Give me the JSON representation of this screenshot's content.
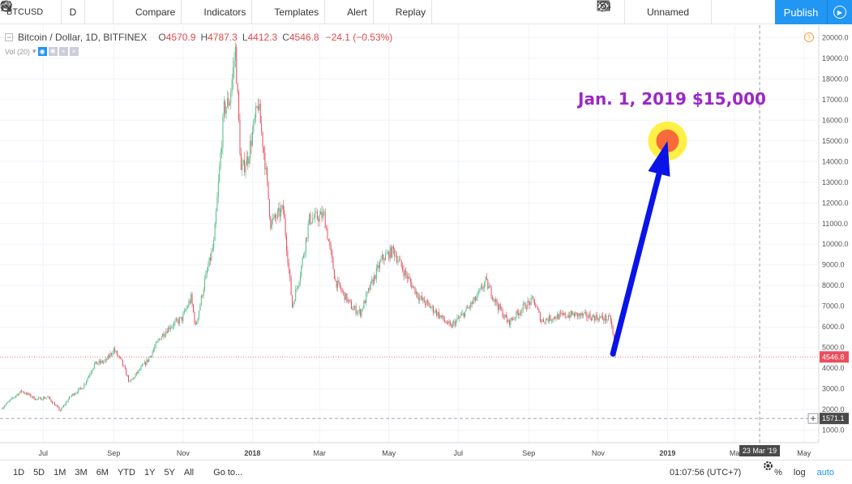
{
  "toolbar": {
    "symbol": "BTCUSD",
    "interval": "D",
    "compare_label": "Compare",
    "indicators_label": "Indicators",
    "templates_label": "Templates",
    "alert_label": "Alert",
    "replay_label": "Replay",
    "layout_name": "Unnamed",
    "publish_label": "Publish"
  },
  "legend": {
    "title": "Bitcoin / Dollar, 1D, BITFINEX",
    "open_key": "O",
    "open": "4570.9",
    "high_key": "H",
    "high": "4787.3",
    "low_key": "L",
    "low": "4412.3",
    "close_key": "C",
    "close": "4546.8",
    "change": "−24.1 (−0.53%)",
    "volume": "Vol (20)"
  },
  "annotation": {
    "text": "Jan. 1, 2019 $15,000",
    "color": "#9b27c7",
    "target": {
      "x": "2019-01-01",
      "y": 15000
    },
    "arrow_start": {
      "x": "2018-11-14",
      "y": 4700
    },
    "arrow_color": "#0a14e8"
  },
  "chart_data": {
    "type": "candlestick",
    "title": "Bitcoin / Dollar, 1D, BITFINEX",
    "y_ticks": [
      "1000.0",
      "2000.0",
      "3000.0",
      "4000.0",
      "5000.0",
      "6000.0",
      "7000.0",
      "8000.0",
      "9000.0",
      "10000.0",
      "11000.0",
      "12000.0",
      "13000.0",
      "14000.0",
      "15000.0",
      "16000.0",
      "17000.0",
      "18000.0",
      "19000.0",
      "20000.0"
    ],
    "x_ticks": [
      "Jul",
      "Sep",
      "Nov",
      "2018",
      "Mar",
      "May",
      "Jul",
      "Sep",
      "Nov",
      "2019",
      "Ma",
      "May"
    ],
    "x_tick_dates": [
      "2017-07-01",
      "2017-09-01",
      "2017-11-01",
      "2018-01-01",
      "2018-03-01",
      "2018-05-01",
      "2018-07-01",
      "2018-09-01",
      "2018-11-01",
      "2019-01-01",
      "2019-03-01",
      "2019-05-01"
    ],
    "ylim": [
      400,
      20600
    ],
    "xlim": [
      "2017-05-24",
      "2019-05-14"
    ],
    "last_price": "4546.8",
    "crosshair_price": "1571.1",
    "crosshair_date": "23 Mar '19",
    "colors": {
      "up": "#53b987",
      "down": "#eb4d5c"
    },
    "series": [
      {
        "date": "2017-05-25",
        "close": 2050
      },
      {
        "date": "2017-06-05",
        "close": 2600
      },
      {
        "date": "2017-06-12",
        "close": 2900
      },
      {
        "date": "2017-06-25",
        "close": 2500
      },
      {
        "date": "2017-07-05",
        "close": 2600
      },
      {
        "date": "2017-07-16",
        "close": 1950
      },
      {
        "date": "2017-07-25",
        "close": 2650
      },
      {
        "date": "2017-08-05",
        "close": 3100
      },
      {
        "date": "2017-08-15",
        "close": 4200
      },
      {
        "date": "2017-08-25",
        "close": 4350
      },
      {
        "date": "2017-09-01",
        "close": 4900
      },
      {
        "date": "2017-09-08",
        "close": 4300
      },
      {
        "date": "2017-09-15",
        "close": 3300
      },
      {
        "date": "2017-09-22",
        "close": 3800
      },
      {
        "date": "2017-10-01",
        "close": 4400
      },
      {
        "date": "2017-10-12",
        "close": 5500
      },
      {
        "date": "2017-10-20",
        "close": 6000
      },
      {
        "date": "2017-10-31",
        "close": 6400
      },
      {
        "date": "2017-11-08",
        "close": 7400
      },
      {
        "date": "2017-11-12",
        "close": 6000
      },
      {
        "date": "2017-11-20",
        "close": 8200
      },
      {
        "date": "2017-11-28",
        "close": 10000
      },
      {
        "date": "2017-12-07",
        "close": 16500
      },
      {
        "date": "2017-12-12",
        "close": 17000
      },
      {
        "date": "2017-12-17",
        "close": 19400
      },
      {
        "date": "2017-12-22",
        "close": 13500
      },
      {
        "date": "2017-12-28",
        "close": 14200
      },
      {
        "date": "2018-01-06",
        "close": 16800
      },
      {
        "date": "2018-01-12",
        "close": 14000
      },
      {
        "date": "2018-01-17",
        "close": 11000
      },
      {
        "date": "2018-01-28",
        "close": 11700
      },
      {
        "date": "2018-02-05",
        "close": 7000
      },
      {
        "date": "2018-02-12",
        "close": 8600
      },
      {
        "date": "2018-02-20",
        "close": 11200
      },
      {
        "date": "2018-03-05",
        "close": 11400
      },
      {
        "date": "2018-03-15",
        "close": 8200
      },
      {
        "date": "2018-03-30",
        "close": 6900
      },
      {
        "date": "2018-04-06",
        "close": 6700
      },
      {
        "date": "2018-04-15",
        "close": 8000
      },
      {
        "date": "2018-04-25",
        "close": 9300
      },
      {
        "date": "2018-05-05",
        "close": 9700
      },
      {
        "date": "2018-05-15",
        "close": 8600
      },
      {
        "date": "2018-05-28",
        "close": 7400
      },
      {
        "date": "2018-06-10",
        "close": 6800
      },
      {
        "date": "2018-06-24",
        "close": 6000
      },
      {
        "date": "2018-07-05",
        "close": 6600
      },
      {
        "date": "2018-07-17",
        "close": 7400
      },
      {
        "date": "2018-07-25",
        "close": 8200
      },
      {
        "date": "2018-08-05",
        "close": 7000
      },
      {
        "date": "2018-08-14",
        "close": 6200
      },
      {
        "date": "2018-08-28",
        "close": 7000
      },
      {
        "date": "2018-09-05",
        "close": 7300
      },
      {
        "date": "2018-09-12",
        "close": 6300
      },
      {
        "date": "2018-09-25",
        "close": 6500
      },
      {
        "date": "2018-10-10",
        "close": 6600
      },
      {
        "date": "2018-10-25",
        "close": 6500
      },
      {
        "date": "2018-11-08",
        "close": 6400
      },
      {
        "date": "2018-11-12",
        "close": 6350
      },
      {
        "date": "2018-11-14",
        "close": 5600
      },
      {
        "date": "2018-11-16",
        "close": 4546.8
      }
    ]
  },
  "bottom": {
    "ranges": [
      "1D",
      "5D",
      "1M",
      "3M",
      "6M",
      "YTD",
      "1Y",
      "5Y",
      "All"
    ],
    "goto_label": "Go to...",
    "clock": "01:07:56 (UTC+7)",
    "percent_label": "%",
    "log_label": "log",
    "auto_label": "auto"
  }
}
